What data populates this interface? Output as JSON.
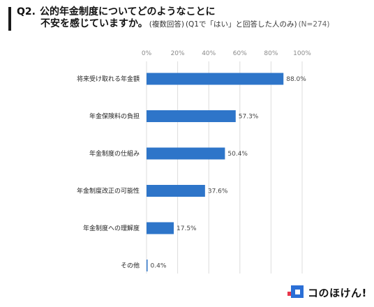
{
  "title": {
    "q_label": "Q2.",
    "line1": "公的年金制度についてどのようなことに",
    "line2": "不安を感じていますか。",
    "note": "(複数回答)",
    "condition": "(Q1で「はい」と回答した人のみ)",
    "sample": "(N=274)"
  },
  "chart_data": {
    "type": "bar",
    "orientation": "horizontal",
    "categories": [
      "将来受け取れる年金額",
      "年金保険料の負担",
      "年金制度の仕組み",
      "年金制度改正の可能性",
      "年金制度への理解度",
      "その他"
    ],
    "values": [
      88.0,
      57.3,
      50.4,
      37.6,
      17.5,
      0.4
    ],
    "value_labels": [
      "88.0%",
      "57.3%",
      "50.4%",
      "37.6%",
      "17.5%",
      "0.4%"
    ],
    "xlim": [
      0,
      100
    ],
    "ticks": [
      0,
      20,
      40,
      60,
      80,
      100
    ],
    "tick_labels": [
      "0%",
      "20%",
      "40%",
      "60%",
      "80%",
      "100%"
    ],
    "xlabel": "",
    "ylabel": "",
    "axis_position": "top",
    "grid": true,
    "bar_color": "#2e75c9",
    "grid_color": "#dcdcdc"
  },
  "logo": {
    "text": "コのほけん!"
  }
}
